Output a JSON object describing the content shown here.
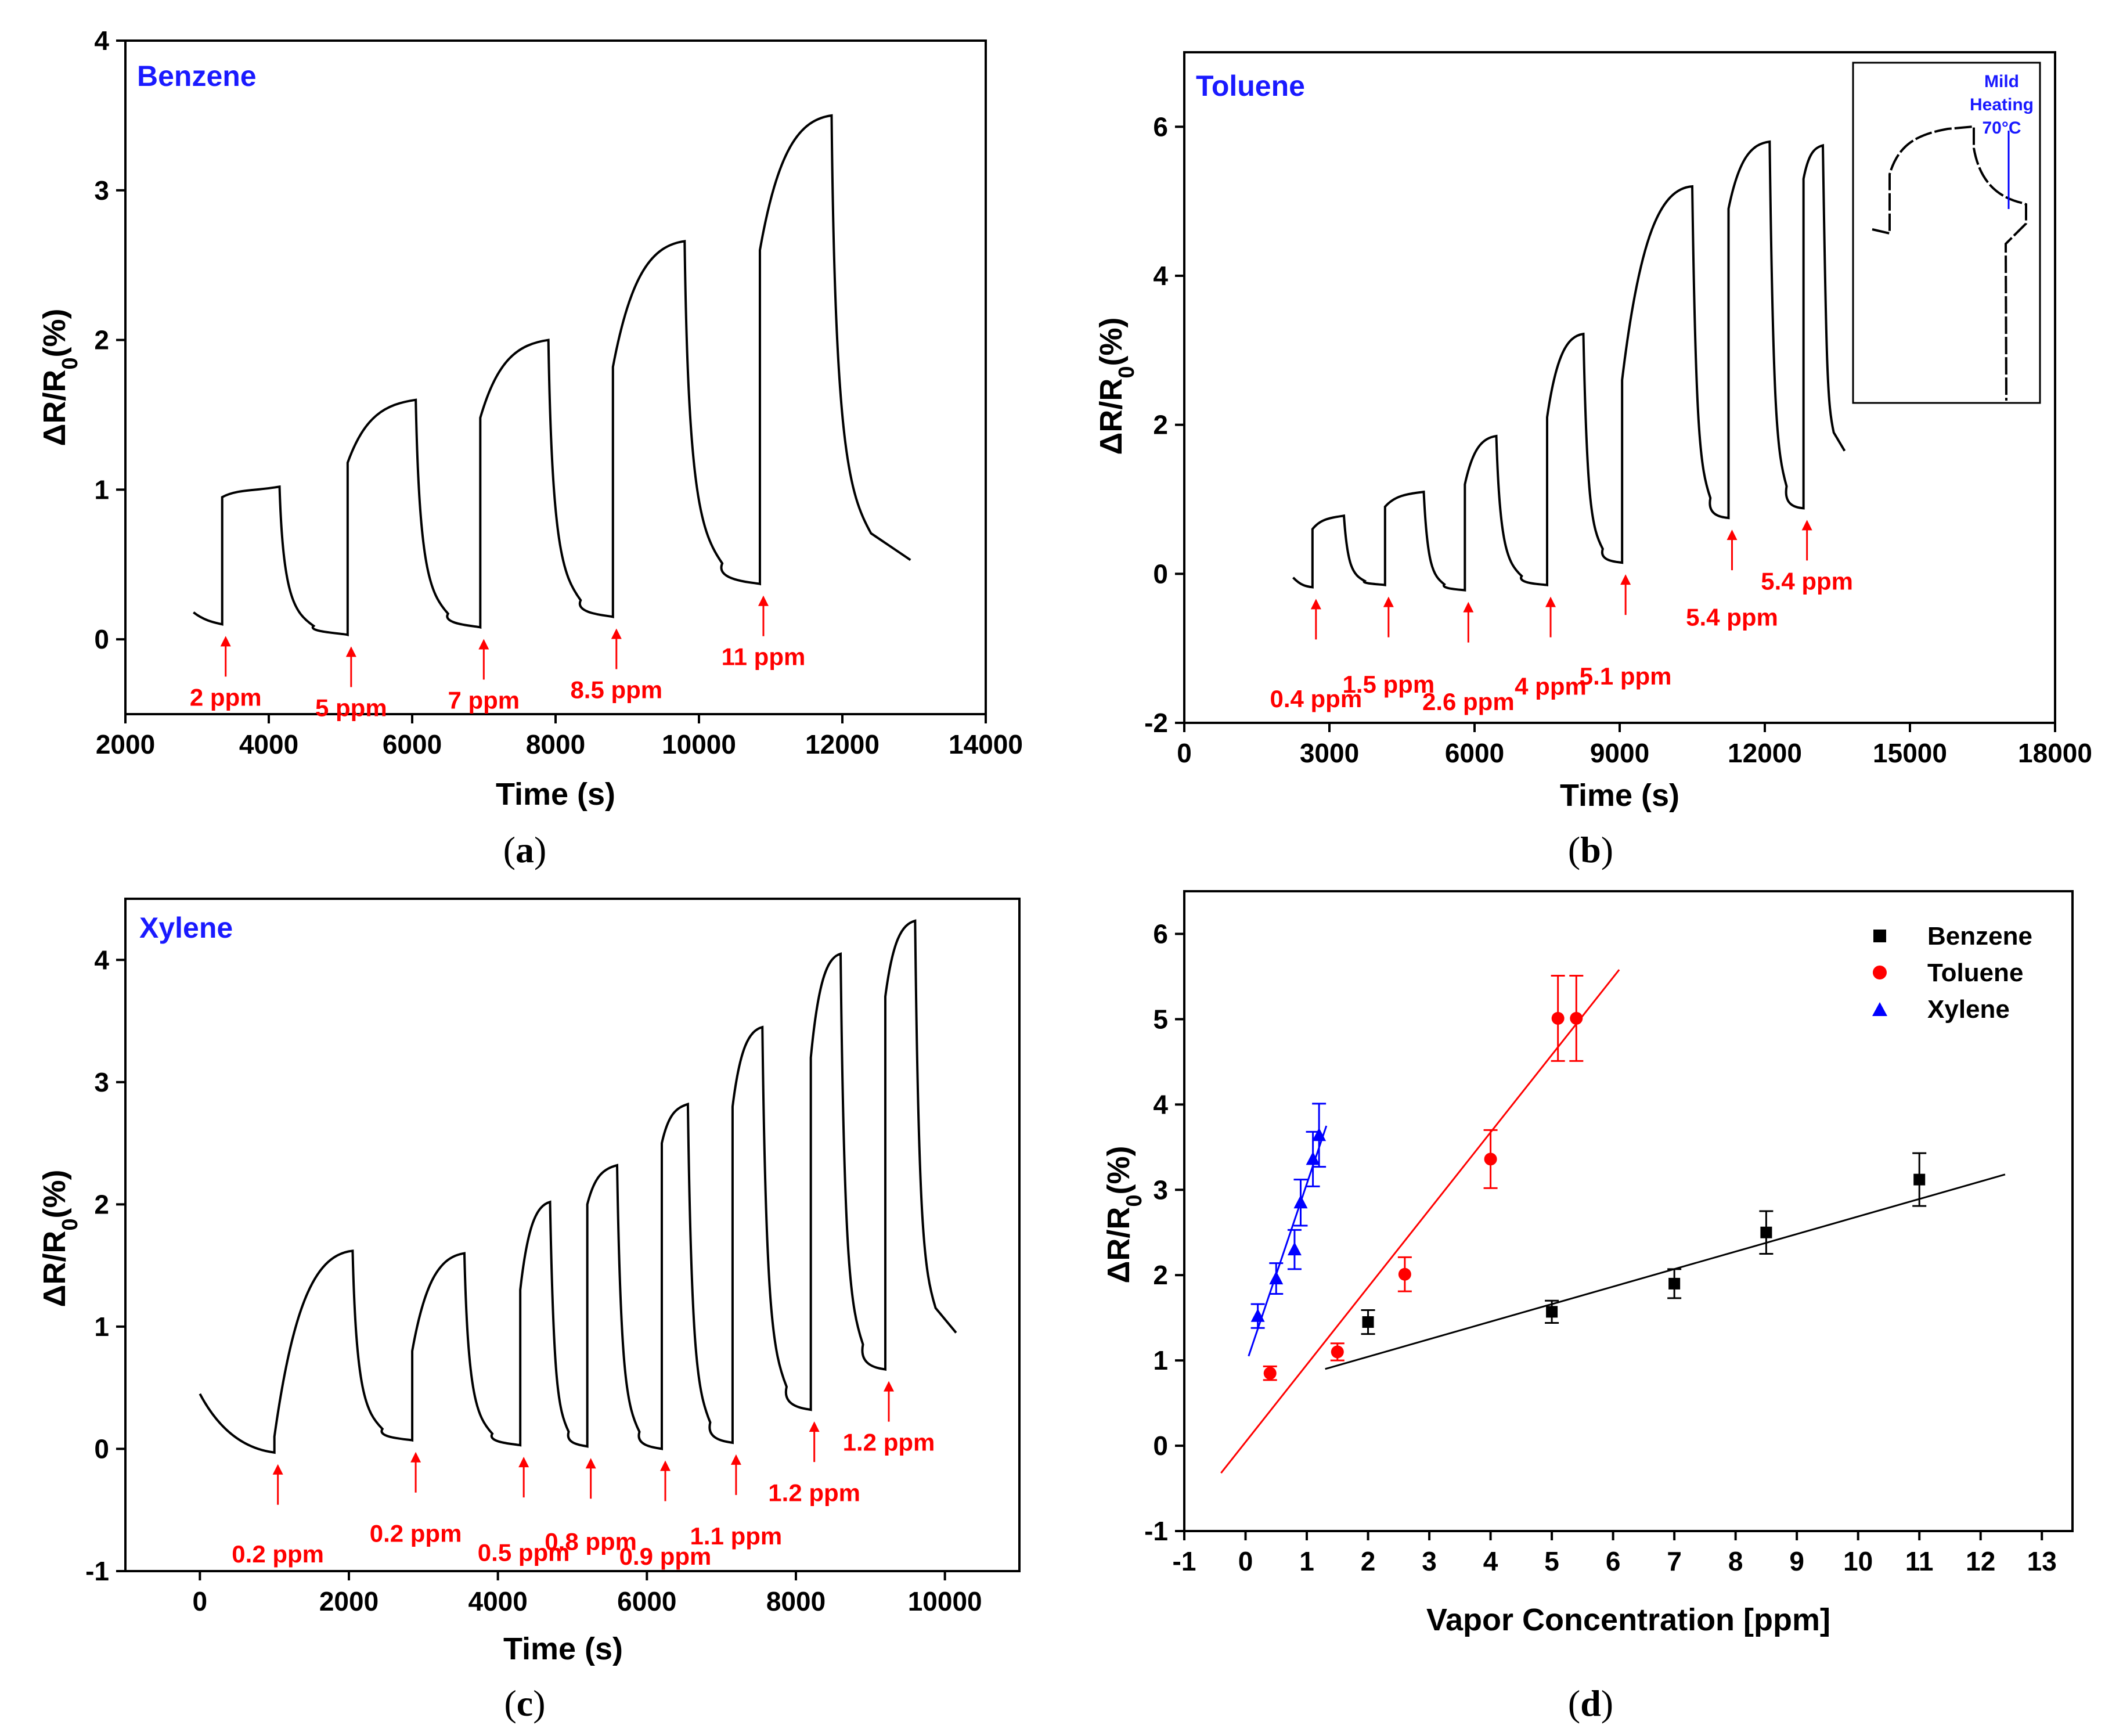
{
  "captions": [
    "a",
    "b",
    "c",
    "d"
  ],
  "chart_data": [
    {
      "type": "line",
      "panel_label": "Benzene",
      "xlabel": "Time (s)",
      "ylabel": "ΔR/R0(%)",
      "xlim": [
        2000,
        14000
      ],
      "ylim": [
        -0.5,
        4
      ],
      "xticks": [
        2000,
        4000,
        6000,
        8000,
        10000,
        12000,
        14000
      ],
      "yticks": [
        0,
        1,
        2,
        3,
        4
      ],
      "line_color": "#000000",
      "annotation_color": "#ff0000",
      "title_color": "#1a1aff",
      "baseline_start": 0.18,
      "pulses": [
        {
          "on": 3350,
          "off": 4150,
          "base": 0.1,
          "top": 1.02,
          "jump": 0.95,
          "label": "2 ppm"
        },
        {
          "on": 5100,
          "off": 6050,
          "base": 0.03,
          "top": 1.6,
          "jump": 1.18,
          "label": "5 ppm"
        },
        {
          "on": 6950,
          "off": 7900,
          "base": 0.08,
          "top": 2.0,
          "jump": 1.48,
          "label": "7 ppm"
        },
        {
          "on": 8800,
          "off": 9800,
          "base": 0.15,
          "top": 2.66,
          "jump": 1.82,
          "label": "8.5 ppm"
        },
        {
          "on": 10850,
          "off": 11850,
          "base": 0.37,
          "top": 3.5,
          "jump": 2.6,
          "label": "11 ppm"
        }
      ],
      "end": {
        "x": 12950,
        "y": 0.53
      }
    },
    {
      "type": "line",
      "panel_label": "Toluene",
      "xlabel": "Time (s)",
      "ylabel": "ΔR/R0(%)",
      "xlim": [
        0,
        18000
      ],
      "ylim": [
        -2,
        7
      ],
      "xticks": [
        0,
        3000,
        6000,
        9000,
        12000,
        15000,
        18000
      ],
      "yticks": [
        -2,
        0,
        2,
        4,
        6
      ],
      "line_color": "#000000",
      "annotation_color": "#ff0000",
      "title_color": "#1a1aff",
      "baseline_start": -0.05,
      "pulses": [
        {
          "on": 2650,
          "off": 3300,
          "base": -0.18,
          "top": 0.78,
          "jump": 0.6,
          "label": "0.4 ppm"
        },
        {
          "on": 4150,
          "off": 4950,
          "base": -0.15,
          "top": 1.1,
          "jump": 0.9,
          "label": "1.5 ppm"
        },
        {
          "on": 5800,
          "off": 6450,
          "base": -0.22,
          "top": 1.85,
          "jump": 1.2,
          "label": "2.6 ppm"
        },
        {
          "on": 7500,
          "off": 8250,
          "base": -0.15,
          "top": 3.22,
          "jump": 2.1,
          "label": "4 ppm"
        },
        {
          "on": 9050,
          "off": 10500,
          "base": 0.15,
          "top": 5.2,
          "jump": 2.6,
          "label": "5.1 ppm"
        },
        {
          "on": 11250,
          "off": 12100,
          "base": 0.75,
          "top": 5.8,
          "jump": 4.9,
          "label": "5.4 ppm"
        },
        {
          "on": 12800,
          "off": 13200,
          "base": 0.88,
          "top": 5.75,
          "jump": 5.3,
          "label": "5.4 ppm"
        }
      ],
      "end": {
        "x": 13650,
        "y": 1.65
      },
      "inset": {
        "label_lines": [
          "Mild",
          "Heating",
          "70°C"
        ]
      }
    },
    {
      "type": "line",
      "panel_label": "Xylene",
      "xlabel": "Time (s)",
      "ylabel": "ΔR/R0(%)",
      "xlim": [
        -1000,
        11000
      ],
      "ylim": [
        -1,
        4.5
      ],
      "xticks": [
        0,
        2000,
        4000,
        6000,
        8000,
        10000
      ],
      "yticks": [
        -1,
        0,
        1,
        2,
        3,
        4
      ],
      "line_color": "#000000",
      "annotation_color": "#ff0000",
      "title_color": "#1a1aff",
      "baseline_start": 0.45,
      "pulses": [
        {
          "on": 1000,
          "off": 2050,
          "base": -0.03,
          "top": 1.62,
          "jump": 0.1,
          "label": "0.2 ppm"
        },
        {
          "on": 2850,
          "off": 3550,
          "base": 0.07,
          "top": 1.6,
          "jump": 0.8,
          "label": "0.2 ppm"
        },
        {
          "on": 4300,
          "off": 4700,
          "base": 0.03,
          "top": 2.02,
          "jump": 1.3,
          "label": "0.5 ppm"
        },
        {
          "on": 5200,
          "off": 5600,
          "base": 0.02,
          "top": 2.32,
          "jump": 2.0,
          "label": "0.8 ppm"
        },
        {
          "on": 6200,
          "off": 6550,
          "base": 0.0,
          "top": 2.82,
          "jump": 2.5,
          "label": "0.9 ppm"
        },
        {
          "on": 7150,
          "off": 7550,
          "base": 0.05,
          "top": 3.45,
          "jump": 2.8,
          "label": "1.1 ppm"
        },
        {
          "on": 8200,
          "off": 8600,
          "base": 0.32,
          "top": 4.05,
          "jump": 3.2,
          "label": "1.2 ppm"
        },
        {
          "on": 9200,
          "off": 9600,
          "base": 0.65,
          "top": 4.32,
          "jump": 3.7,
          "label": "1.2 ppm"
        }
      ],
      "end": {
        "x": 10150,
        "y": 0.95
      }
    },
    {
      "type": "scatter",
      "xlabel": "Vapor Concentration [ppm]",
      "ylabel": "ΔR/R0(%)",
      "xlim": [
        -1,
        13.5
      ],
      "ylim": [
        -1,
        6.5
      ],
      "xticks": [
        -1,
        0,
        1,
        2,
        3,
        4,
        5,
        6,
        7,
        8,
        9,
        10,
        11,
        12,
        13
      ],
      "yticks": [
        -1,
        0,
        1,
        2,
        3,
        4,
        5,
        6
      ],
      "legend_position": "top-right",
      "series": [
        {
          "name": "Benzene",
          "color": "#000000",
          "marker": "square",
          "x": [
            2,
            5,
            7,
            8.5,
            11
          ],
          "y": [
            1.45,
            1.57,
            1.9,
            2.5,
            3.12
          ],
          "err": [
            0.14,
            0.13,
            0.17,
            0.25,
            0.31
          ],
          "fit": {
            "x": [
              1.3,
              12.4
            ],
            "y": [
              0.9,
              3.18
            ]
          }
        },
        {
          "name": "Toluene",
          "color": "#ff0000",
          "marker": "circle",
          "x": [
            0.4,
            1.5,
            2.6,
            4,
            5.1,
            5.4
          ],
          "y": [
            0.85,
            1.1,
            2.01,
            3.36,
            5.01,
            5.01
          ],
          "err": [
            0.08,
            0.1,
            0.2,
            0.34,
            0.5,
            0.5
          ],
          "fit": {
            "x": [
              -0.4,
              6.1
            ],
            "y": [
              -0.32,
              5.58
            ]
          }
        },
        {
          "name": "Xylene",
          "color": "#0000ff",
          "marker": "triangle",
          "x": [
            0.2,
            0.5,
            0.8,
            0.9,
            1.1,
            1.2
          ],
          "y": [
            1.52,
            1.96,
            2.3,
            2.85,
            3.36,
            3.64
          ],
          "err": [
            0.14,
            0.18,
            0.23,
            0.27,
            0.32,
            0.37
          ],
          "fit": {
            "x": [
              0.05,
              1.32
            ],
            "y": [
              1.05,
              3.75
            ]
          }
        }
      ]
    }
  ]
}
